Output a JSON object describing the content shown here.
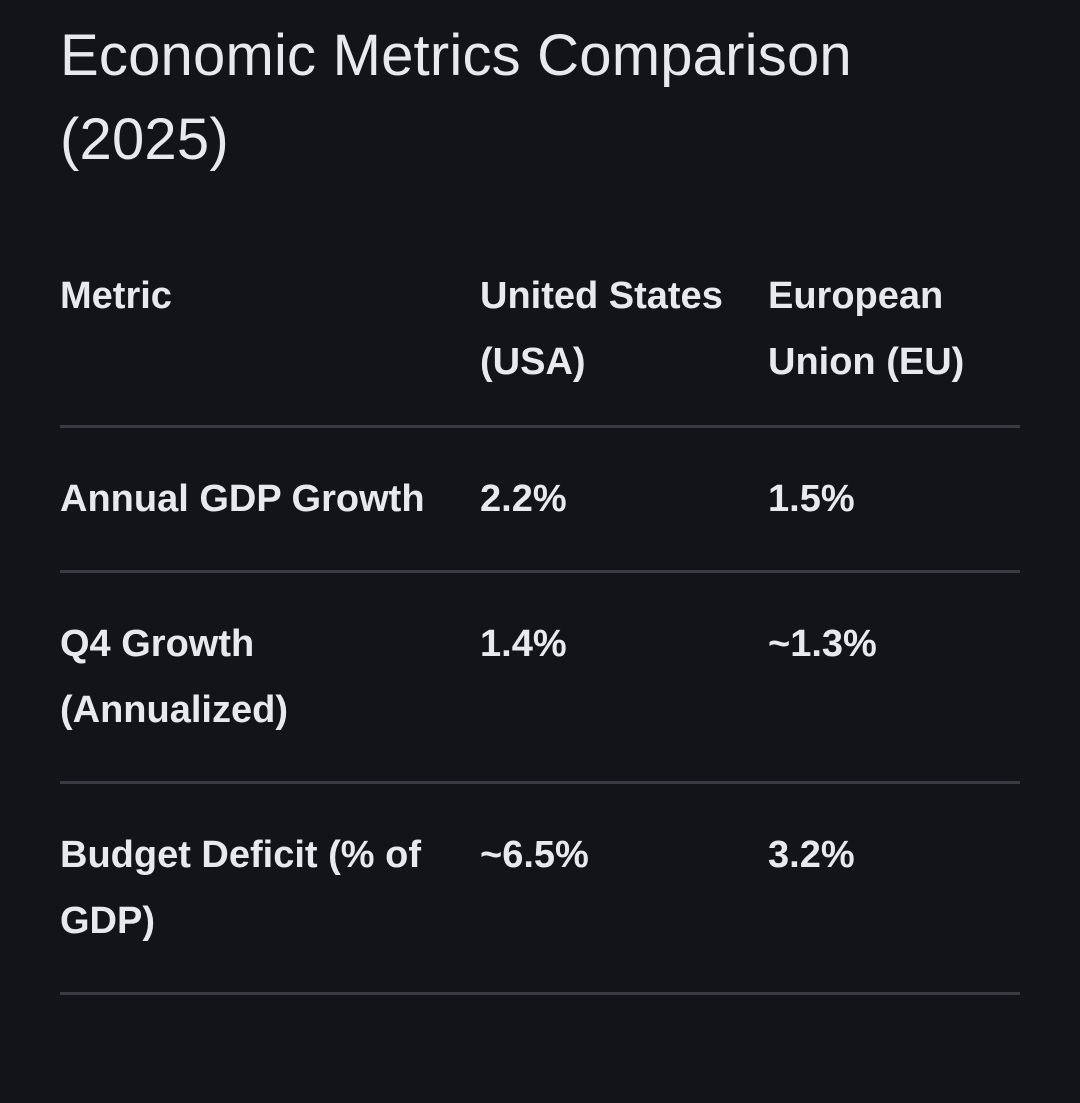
{
  "title": "Economic Metrics Comparison (2025)",
  "table": {
    "headers": {
      "metric": "Metric",
      "usa": "United States (USA)",
      "eu": "European Union (EU)"
    },
    "rows": [
      {
        "metric": "Annual GDP Growth",
        "usa": "2.2%",
        "eu": "1.5%"
      },
      {
        "metric": "Q4 Growth (Annualized)",
        "usa": "1.4%",
        "eu": "~1.3%"
      },
      {
        "metric": "Budget Deficit (% of GDP)",
        "usa": "~6.5%",
        "eu": "3.2%"
      }
    ]
  },
  "colors": {
    "background": "#131419",
    "text": "#e8e9ee",
    "divider": "#3a3b42"
  }
}
